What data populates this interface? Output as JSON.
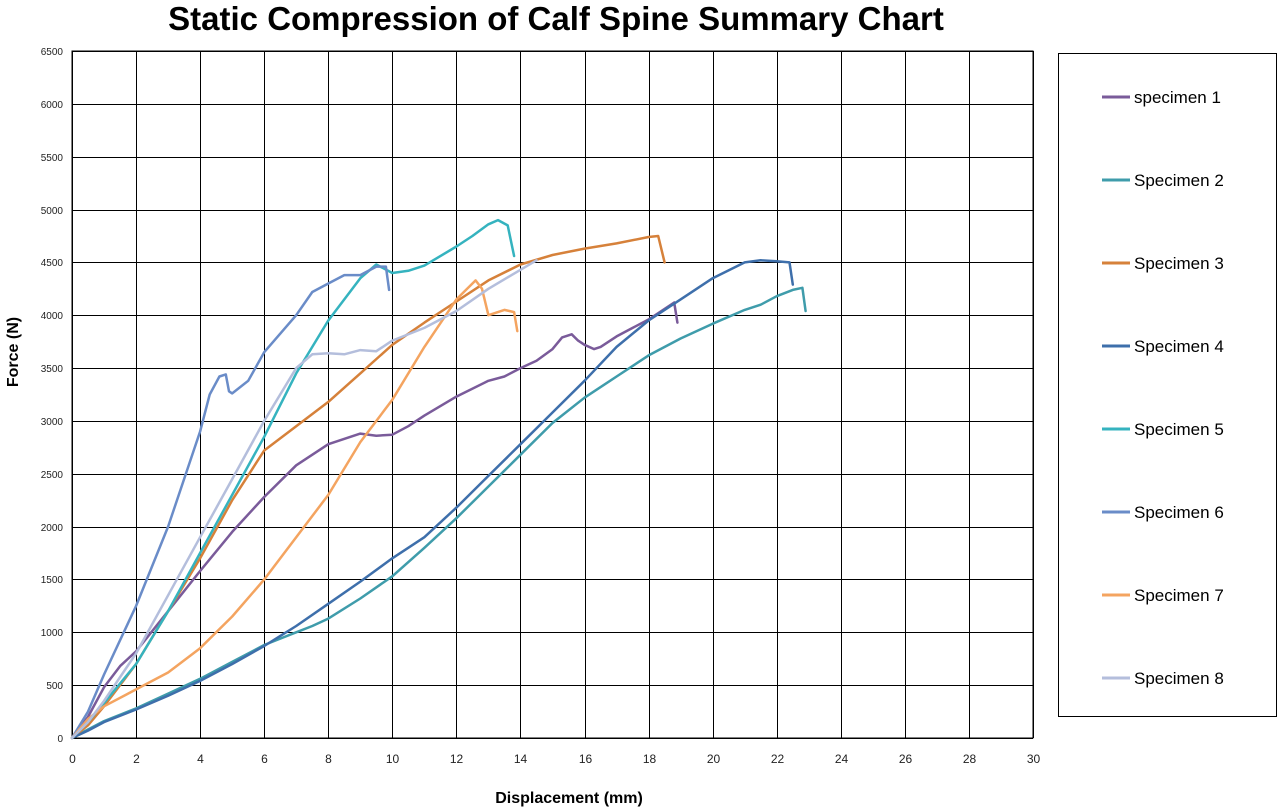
{
  "chart_data": {
    "type": "line",
    "title": "Static Compression of Calf Spine Summary Chart",
    "xlabel": "Displacement (mm)",
    "ylabel": "Force (N)",
    "xlim": [
      0,
      30
    ],
    "ylim": [
      0,
      6500
    ],
    "xticks": [
      0,
      2,
      4,
      6,
      8,
      10,
      12,
      14,
      16,
      18,
      20,
      22,
      24,
      26,
      28,
      30
    ],
    "yticks": [
      0,
      500,
      1000,
      1500,
      2000,
      2500,
      3000,
      3500,
      4000,
      4500,
      5000,
      5500,
      6000,
      6500
    ],
    "grid": true,
    "legend_position": "right",
    "series": [
      {
        "name": "specimen 1",
        "color": "#7a5b9a",
        "points": [
          [
            0,
            0
          ],
          [
            0.5,
            200
          ],
          [
            1,
            480
          ],
          [
            1.5,
            680
          ],
          [
            2,
            820
          ],
          [
            3,
            1200
          ],
          [
            4,
            1580
          ],
          [
            5,
            1950
          ],
          [
            6,
            2280
          ],
          [
            7,
            2580
          ],
          [
            8,
            2780
          ],
          [
            9,
            2880
          ],
          [
            9.5,
            2860
          ],
          [
            10,
            2870
          ],
          [
            10.5,
            2950
          ],
          [
            11,
            3050
          ],
          [
            12,
            3230
          ],
          [
            13,
            3380
          ],
          [
            13.5,
            3420
          ],
          [
            14,
            3500
          ],
          [
            14.5,
            3570
          ],
          [
            15,
            3680
          ],
          [
            15.3,
            3790
          ],
          [
            15.6,
            3820
          ],
          [
            15.8,
            3760
          ],
          [
            16,
            3720
          ],
          [
            16.3,
            3680
          ],
          [
            16.5,
            3700
          ],
          [
            17,
            3800
          ],
          [
            17.5,
            3880
          ],
          [
            18,
            3960
          ],
          [
            18.5,
            4060
          ],
          [
            18.8,
            4120
          ],
          [
            18.9,
            3930
          ]
        ]
      },
      {
        "name": "Specimen 2",
        "color": "#3f9cab",
        "points": [
          [
            0,
            0
          ],
          [
            0.5,
            80
          ],
          [
            1,
            160
          ],
          [
            2,
            280
          ],
          [
            3,
            420
          ],
          [
            4,
            560
          ],
          [
            5,
            720
          ],
          [
            6,
            880
          ],
          [
            7,
            1000
          ],
          [
            7.5,
            1060
          ],
          [
            8,
            1130
          ],
          [
            9,
            1320
          ],
          [
            10,
            1530
          ],
          [
            11,
            1800
          ],
          [
            12,
            2080
          ],
          [
            13,
            2380
          ],
          [
            14,
            2680
          ],
          [
            15,
            2980
          ],
          [
            16,
            3220
          ],
          [
            17,
            3420
          ],
          [
            18,
            3620
          ],
          [
            19,
            3780
          ],
          [
            20,
            3920
          ],
          [
            21,
            4050
          ],
          [
            21.5,
            4100
          ],
          [
            22,
            4180
          ],
          [
            22.5,
            4240
          ],
          [
            22.8,
            4260
          ],
          [
            22.9,
            4040
          ]
        ]
      },
      {
        "name": "Specimen 3",
        "color": "#d6813a",
        "points": [
          [
            0,
            0
          ],
          [
            0.5,
            120
          ],
          [
            1,
            300
          ],
          [
            2,
            700
          ],
          [
            3,
            1200
          ],
          [
            4,
            1700
          ],
          [
            5,
            2250
          ],
          [
            6,
            2720
          ],
          [
            7,
            2950
          ],
          [
            8,
            3180
          ],
          [
            9,
            3450
          ],
          [
            10,
            3720
          ],
          [
            11,
            3930
          ],
          [
            12,
            4130
          ],
          [
            13,
            4330
          ],
          [
            14,
            4480
          ],
          [
            15,
            4570
          ],
          [
            16,
            4630
          ],
          [
            17,
            4680
          ],
          [
            18,
            4740
          ],
          [
            18.3,
            4750
          ],
          [
            18.5,
            4500
          ]
        ]
      },
      {
        "name": "Specimen 4",
        "color": "#3e6fab",
        "points": [
          [
            0,
            0
          ],
          [
            0.5,
            70
          ],
          [
            1,
            150
          ],
          [
            2,
            270
          ],
          [
            3,
            400
          ],
          [
            4,
            540
          ],
          [
            5,
            700
          ],
          [
            6,
            870
          ],
          [
            7,
            1060
          ],
          [
            8,
            1270
          ],
          [
            9,
            1480
          ],
          [
            10,
            1700
          ],
          [
            11,
            1900
          ],
          [
            12,
            2180
          ],
          [
            13,
            2480
          ],
          [
            14,
            2780
          ],
          [
            15,
            3080
          ],
          [
            16,
            3380
          ],
          [
            17,
            3700
          ],
          [
            18,
            3950
          ],
          [
            19,
            4150
          ],
          [
            20,
            4350
          ],
          [
            21,
            4500
          ],
          [
            21.5,
            4520
          ],
          [
            22,
            4510
          ],
          [
            22.4,
            4500
          ],
          [
            22.5,
            4290
          ]
        ]
      },
      {
        "name": "Specimen 5",
        "color": "#35b3bf",
        "points": [
          [
            0,
            0
          ],
          [
            0.5,
            150
          ],
          [
            1,
            330
          ],
          [
            2,
            700
          ],
          [
            3,
            1200
          ],
          [
            4,
            1750
          ],
          [
            5,
            2300
          ],
          [
            6,
            2850
          ],
          [
            7,
            3450
          ],
          [
            8,
            3950
          ],
          [
            9,
            4350
          ],
          [
            9.5,
            4480
          ],
          [
            10,
            4400
          ],
          [
            10.5,
            4420
          ],
          [
            11,
            4470
          ],
          [
            12,
            4650
          ],
          [
            12.5,
            4750
          ],
          [
            13,
            4860
          ],
          [
            13.3,
            4900
          ],
          [
            13.6,
            4850
          ],
          [
            13.8,
            4560
          ]
        ]
      },
      {
        "name": "Specimen 6",
        "color": "#6a8cc8",
        "points": [
          [
            0,
            0
          ],
          [
            0.5,
            250
          ],
          [
            1,
            600
          ],
          [
            2,
            1250
          ],
          [
            3,
            2000
          ],
          [
            4,
            2900
          ],
          [
            4.3,
            3250
          ],
          [
            4.6,
            3420
          ],
          [
            4.8,
            3440
          ],
          [
            4.9,
            3280
          ],
          [
            5,
            3260
          ],
          [
            5.5,
            3380
          ],
          [
            6,
            3650
          ],
          [
            7,
            4000
          ],
          [
            7.5,
            4220
          ],
          [
            8,
            4300
          ],
          [
            8.5,
            4380
          ],
          [
            9,
            4380
          ],
          [
            9.5,
            4460
          ],
          [
            9.8,
            4460
          ],
          [
            9.9,
            4240
          ]
        ]
      },
      {
        "name": "Specimen 7",
        "color": "#f4a460",
        "points": [
          [
            0,
            0
          ],
          [
            0.5,
            180
          ],
          [
            1,
            300
          ],
          [
            2,
            460
          ],
          [
            3,
            620
          ],
          [
            4,
            850
          ],
          [
            5,
            1150
          ],
          [
            6,
            1500
          ],
          [
            7,
            1900
          ],
          [
            8,
            2300
          ],
          [
            9,
            2800
          ],
          [
            10,
            3200
          ],
          [
            11,
            3700
          ],
          [
            12,
            4150
          ],
          [
            12.6,
            4330
          ],
          [
            12.8,
            4250
          ],
          [
            13,
            4000
          ],
          [
            13.5,
            4050
          ],
          [
            13.8,
            4030
          ],
          [
            13.9,
            3850
          ]
        ]
      },
      {
        "name": "Specimen 8",
        "color": "#b4bedc",
        "points": [
          [
            0,
            0
          ],
          [
            0.5,
            150
          ],
          [
            1,
            350
          ],
          [
            2,
            800
          ],
          [
            3,
            1350
          ],
          [
            4,
            1900
          ],
          [
            5,
            2450
          ],
          [
            6,
            3000
          ],
          [
            7,
            3500
          ],
          [
            7.5,
            3630
          ],
          [
            8,
            3640
          ],
          [
            8.5,
            3630
          ],
          [
            9,
            3670
          ],
          [
            9.5,
            3660
          ],
          [
            10,
            3760
          ],
          [
            11,
            3880
          ],
          [
            12,
            4040
          ],
          [
            13,
            4250
          ],
          [
            14,
            4430
          ],
          [
            14.5,
            4520
          ]
        ]
      }
    ]
  }
}
